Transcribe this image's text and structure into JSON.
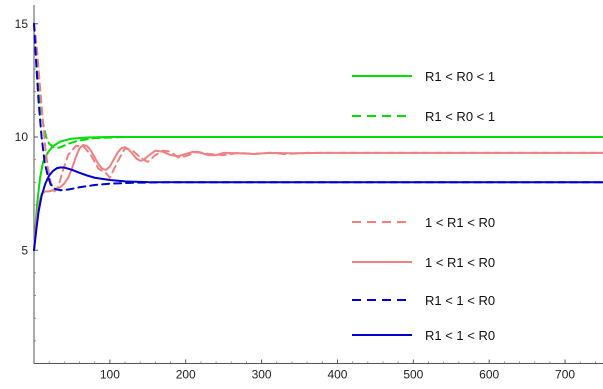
{
  "chart_data": {
    "type": "line",
    "title": "",
    "xlabel": "",
    "ylabel": "",
    "xlim": [
      0,
      750
    ],
    "ylim": [
      0,
      16
    ],
    "xticks": [
      100,
      200,
      300,
      400,
      500,
      600,
      700
    ],
    "yticks": [
      5,
      10,
      15
    ],
    "grid": false,
    "legend": "right",
    "series": [
      {
        "name": "R1 < R0 < 1",
        "color": "#00e000",
        "dash": "solid",
        "x": [
          0,
          4,
          8,
          12,
          18,
          25,
          35,
          50,
          70,
          100,
          150,
          200,
          300,
          750
        ],
        "y": [
          5,
          7,
          8.2,
          8.9,
          9.3,
          9.6,
          9.8,
          9.93,
          9.98,
          10,
          10,
          10,
          10,
          10
        ]
      },
      {
        "name": "R1 < R0 < 1",
        "color": "#00e000",
        "dash": "dashed",
        "x": [
          0,
          3,
          6,
          9,
          12,
          16,
          20,
          28,
          35,
          45,
          60,
          80,
          120,
          200,
          750
        ],
        "y": [
          15,
          13.5,
          12.3,
          11.3,
          10.6,
          10.0,
          9.7,
          9.5,
          9.55,
          9.7,
          9.85,
          9.95,
          10,
          10,
          10
        ]
      },
      {
        "name": "1 < R1 < R0",
        "color": "#f08080",
        "dash": "dashed",
        "x": [
          0,
          3,
          6,
          9,
          12,
          15,
          18,
          22,
          27,
          32,
          38,
          45,
          55,
          65,
          75,
          85,
          95,
          100,
          110,
          120,
          130,
          140,
          150,
          160,
          170,
          180,
          190,
          200,
          215,
          230,
          250,
          270,
          290,
          310,
          330,
          360,
          400,
          750
        ],
        "y": [
          15,
          14.2,
          13.0,
          11.8,
          10.6,
          9.5,
          8.7,
          8.0,
          7.6,
          7.8,
          8.5,
          9.2,
          9.6,
          9.6,
          9.2,
          8.6,
          8.4,
          8.2,
          8.9,
          9.5,
          9.4,
          9.1,
          8.9,
          9.2,
          9.4,
          9.35,
          9.1,
          9.15,
          9.35,
          9.25,
          9.2,
          9.3,
          9.25,
          9.3,
          9.25,
          9.3,
          9.3,
          9.3
        ]
      },
      {
        "name": "1 < R1 < R0",
        "color": "#f08080",
        "dash": "solid",
        "x": [
          0,
          3,
          6,
          10,
          15,
          20,
          25,
          30,
          35,
          40,
          45,
          50,
          55,
          60,
          65,
          70,
          75,
          80,
          85,
          90,
          95,
          100,
          105,
          110,
          115,
          120,
          125,
          130,
          135,
          140,
          145,
          150,
          160,
          170,
          180,
          190,
          200,
          210,
          220,
          230,
          240,
          250,
          270,
          290,
          310,
          340,
          380,
          750
        ],
        "y": [
          5,
          6.2,
          7.0,
          7.5,
          7.6,
          7.6,
          7.65,
          7.7,
          7.8,
          7.95,
          8.2,
          8.6,
          9.1,
          9.5,
          9.65,
          9.6,
          9.4,
          9.1,
          8.8,
          8.6,
          8.55,
          8.7,
          9.0,
          9.3,
          9.5,
          9.55,
          9.45,
          9.25,
          9.05,
          8.95,
          9.0,
          9.15,
          9.4,
          9.35,
          9.2,
          9.15,
          9.25,
          9.35,
          9.3,
          9.2,
          9.2,
          9.3,
          9.28,
          9.25,
          9.3,
          9.28,
          9.3,
          9.3
        ]
      },
      {
        "name": "R1 < 1 < R0",
        "color": "#0000cc",
        "dash": "dashed",
        "x": [
          0,
          3,
          6,
          10,
          14,
          18,
          22,
          28,
          35,
          45,
          60,
          80,
          100,
          130,
          170,
          220,
          750
        ],
        "y": [
          15,
          13.2,
          11.6,
          10.0,
          8.9,
          8.3,
          7.9,
          7.7,
          7.65,
          7.68,
          7.78,
          7.88,
          7.94,
          7.98,
          8,
          8,
          8
        ]
      },
      {
        "name": "R1 < 1 < R0",
        "color": "#0000cc",
        "dash": "solid",
        "x": [
          0,
          3,
          6,
          10,
          15,
          20,
          25,
          30,
          35,
          40,
          50,
          60,
          70,
          80,
          100,
          120,
          150,
          200,
          750
        ],
        "y": [
          5,
          5.9,
          6.7,
          7.4,
          7.95,
          8.3,
          8.5,
          8.62,
          8.66,
          8.65,
          8.55,
          8.42,
          8.3,
          8.2,
          8.1,
          8.04,
          8.01,
          8,
          8
        ]
      }
    ]
  }
}
